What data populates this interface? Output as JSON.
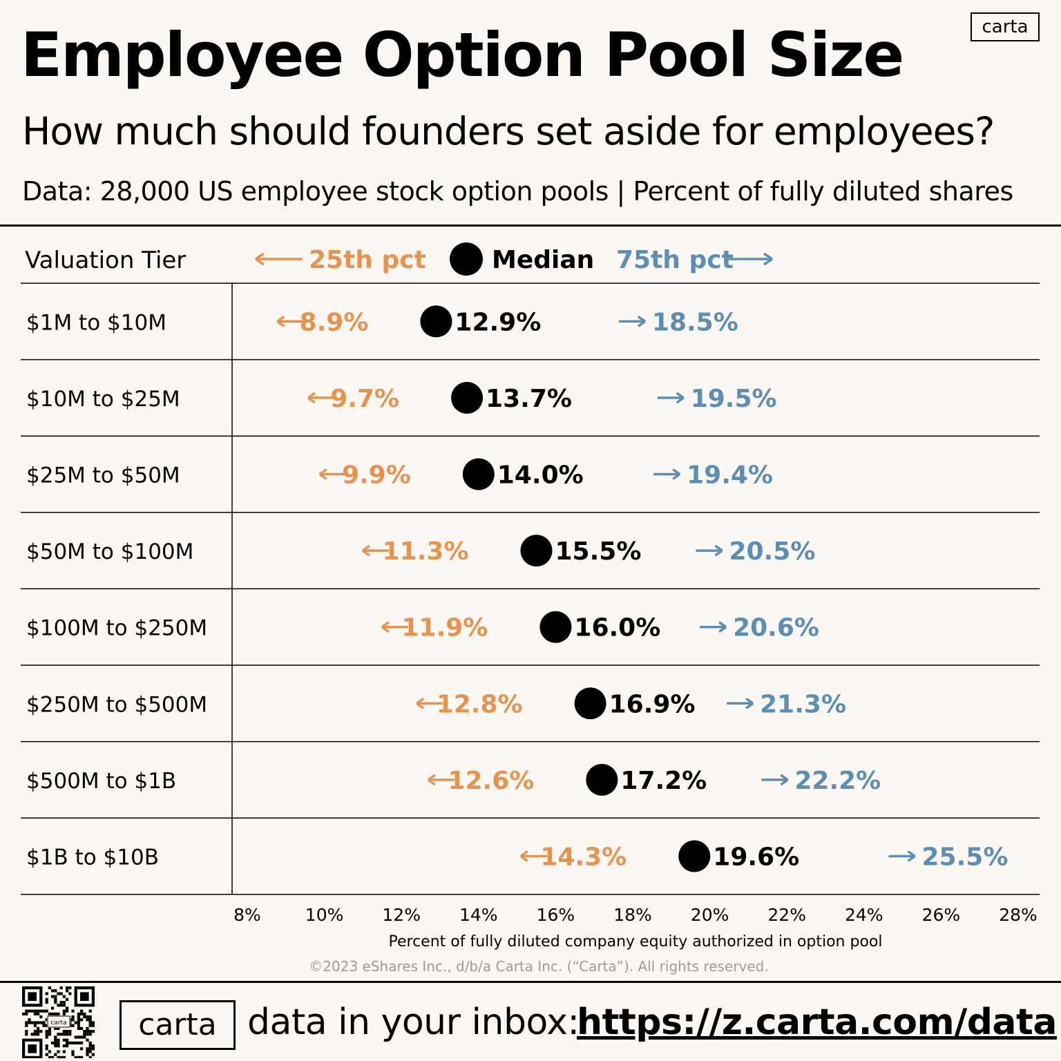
{
  "header": {
    "title": "Employee Option Pool Size",
    "subtitle": "How much should founders set aside for employees?",
    "data_line": "Data: 28,000 US employee stock option pools | Percent of fully diluted shares",
    "logo_text": "carta"
  },
  "colors": {
    "background": "#fbf8f4",
    "p25": "#e8924f",
    "median": "#000000",
    "p75": "#5b8db5",
    "copyright": "#9a9a9a"
  },
  "chart_data": {
    "type": "dot-range",
    "title": "Employee Option Pool Size",
    "column_header": "Valuation Tier",
    "legend": {
      "p25": "25th pct",
      "median": "Median",
      "p75": "75th pct"
    },
    "categories": [
      "$1M to $10M",
      "$10M to $25M",
      "$25M to $50M",
      "$50M to $100M",
      "$100M to $250M",
      "$250M to $500M",
      "$500M to $1B",
      "$1B to $10B"
    ],
    "series": [
      {
        "name": "25th pct",
        "values": [
          8.9,
          9.7,
          9.9,
          11.3,
          11.9,
          12.8,
          12.6,
          14.3
        ]
      },
      {
        "name": "Median",
        "values": [
          12.9,
          13.7,
          14.0,
          15.5,
          16.0,
          16.9,
          17.2,
          19.6
        ]
      },
      {
        "name": "75th pct",
        "values": [
          18.5,
          19.5,
          19.4,
          20.5,
          20.6,
          21.3,
          22.2,
          25.5
        ]
      }
    ],
    "xlim": [
      8,
      28
    ],
    "xticks": [
      8,
      10,
      12,
      14,
      16,
      18,
      20,
      22,
      24,
      26,
      28
    ],
    "xtick_labels": [
      "8%",
      "10%",
      "12%",
      "14%",
      "16%",
      "18%",
      "20%",
      "22%",
      "24%",
      "26%",
      "28%"
    ],
    "xlabel": "Percent of fully diluted company equity authorized in option pool",
    "copyright": "©2023 eShares Inc., d/b/a Carta Inc. (“Carta”). All rights reserved."
  },
  "footer": {
    "logo_text": "carta",
    "text": "data in your inbox:",
    "url": "https://z.carta.com/data",
    "qr_logo_text": "carta"
  }
}
